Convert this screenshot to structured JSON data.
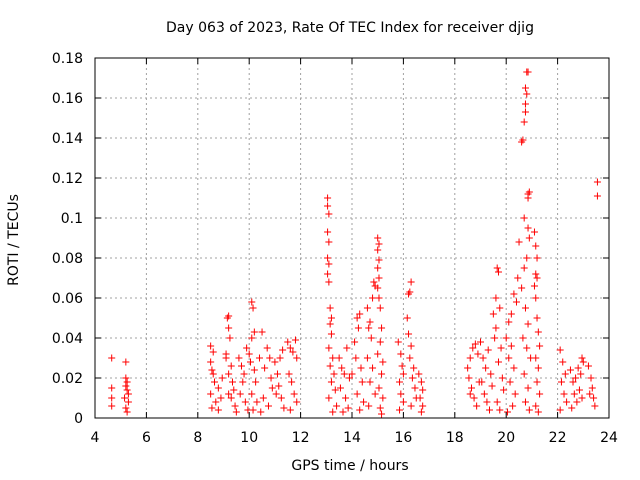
{
  "chart_data": {
    "type": "scatter",
    "title": "Day 063 of 2023, Rate Of TEC Index for receiver djig",
    "xlabel": "GPS time / hours",
    "ylabel": "ROTI / TECUs",
    "xlim": [
      4,
      24
    ],
    "ylim": [
      0,
      0.18
    ],
    "x_ticks": [
      4,
      6,
      8,
      10,
      12,
      14,
      16,
      18,
      20,
      22,
      24
    ],
    "x_tick_labels": [
      "4",
      "6",
      "8",
      "10",
      "12",
      "14",
      "16",
      "18",
      "20",
      "22",
      "24"
    ],
    "y_ticks": [
      0,
      0.02,
      0.04,
      0.06,
      0.08,
      0.1,
      0.12,
      0.14,
      0.16,
      0.18
    ],
    "y_tick_labels": [
      "0",
      "0.02",
      "0.04",
      "0.06",
      "0.08",
      "0.1",
      "0.12",
      "0.14",
      "0.16",
      "0.18"
    ],
    "grid": true,
    "marker": "plus",
    "color": "#ff0000",
    "series": [
      {
        "name": "ROTI",
        "points": [
          [
            4.65,
            0.03
          ],
          [
            4.65,
            0.015
          ],
          [
            4.65,
            0.01
          ],
          [
            4.65,
            0.006
          ],
          [
            5.2,
            0.028
          ],
          [
            5.2,
            0.02
          ],
          [
            5.25,
            0.018
          ],
          [
            5.25,
            0.014
          ],
          [
            5.3,
            0.012
          ],
          [
            5.3,
            0.008
          ],
          [
            5.2,
            0.005
          ],
          [
            5.25,
            0.003
          ],
          [
            5.15,
            0.01
          ],
          [
            5.2,
            0.016
          ],
          [
            8.5,
            0.036
          ],
          [
            8.6,
            0.033
          ],
          [
            8.5,
            0.028
          ],
          [
            8.55,
            0.024
          ],
          [
            8.6,
            0.022
          ],
          [
            8.65,
            0.018
          ],
          [
            8.5,
            0.012
          ],
          [
            8.7,
            0.008
          ],
          [
            8.55,
            0.005
          ],
          [
            8.8,
            0.015
          ],
          [
            8.9,
            0.01
          ],
          [
            8.95,
            0.02
          ],
          [
            8.8,
            0.004
          ],
          [
            9.1,
            0.032
          ],
          [
            9.15,
            0.05
          ],
          [
            9.2,
            0.051
          ],
          [
            9.2,
            0.045
          ],
          [
            9.25,
            0.04
          ],
          [
            9.1,
            0.03
          ],
          [
            9.3,
            0.026
          ],
          [
            9.2,
            0.022
          ],
          [
            9.35,
            0.018
          ],
          [
            9.4,
            0.014
          ],
          [
            9.3,
            0.01
          ],
          [
            9.45,
            0.006
          ],
          [
            9.5,
            0.003
          ],
          [
            9.2,
            0.012
          ],
          [
            9.6,
            0.03
          ],
          [
            9.7,
            0.026
          ],
          [
            9.8,
            0.022
          ],
          [
            9.9,
            0.035
          ],
          [
            9.75,
            0.018
          ],
          [
            9.65,
            0.012
          ],
          [
            9.85,
            0.008
          ],
          [
            9.95,
            0.004
          ],
          [
            10.1,
            0.058
          ],
          [
            10.15,
            0.055
          ],
          [
            10.2,
            0.043
          ],
          [
            10.1,
            0.04
          ],
          [
            10.0,
            0.032
          ],
          [
            10.05,
            0.028
          ],
          [
            10.2,
            0.024
          ],
          [
            10.25,
            0.018
          ],
          [
            10.1,
            0.012
          ],
          [
            10.3,
            0.008
          ],
          [
            10.15,
            0.004
          ],
          [
            10.4,
            0.03
          ],
          [
            10.5,
            0.043
          ],
          [
            10.6,
            0.025
          ],
          [
            10.7,
            0.035
          ],
          [
            10.8,
            0.03
          ],
          [
            10.85,
            0.02
          ],
          [
            10.9,
            0.015
          ],
          [
            10.55,
            0.01
          ],
          [
            10.75,
            0.006
          ],
          [
            10.45,
            0.003
          ],
          [
            11.0,
            0.028
          ],
          [
            11.1,
            0.022
          ],
          [
            11.2,
            0.03
          ],
          [
            11.3,
            0.034
          ],
          [
            11.15,
            0.016
          ],
          [
            11.25,
            0.01
          ],
          [
            11.35,
            0.005
          ],
          [
            11.05,
            0.012
          ],
          [
            11.5,
            0.038
          ],
          [
            11.6,
            0.035
          ],
          [
            11.7,
            0.033
          ],
          [
            11.8,
            0.039
          ],
          [
            11.85,
            0.03
          ],
          [
            11.55,
            0.022
          ],
          [
            11.65,
            0.018
          ],
          [
            11.75,
            0.012
          ],
          [
            11.85,
            0.008
          ],
          [
            11.6,
            0.004
          ],
          [
            13.05,
            0.11
          ],
          [
            13.05,
            0.106
          ],
          [
            13.1,
            0.102
          ],
          [
            13.05,
            0.093
          ],
          [
            13.1,
            0.088
          ],
          [
            13.05,
            0.08
          ],
          [
            13.1,
            0.077
          ],
          [
            13.05,
            0.072
          ],
          [
            13.1,
            0.068
          ],
          [
            13.15,
            0.055
          ],
          [
            13.2,
            0.05
          ],
          [
            13.15,
            0.047
          ],
          [
            13.2,
            0.042
          ],
          [
            13.1,
            0.035
          ],
          [
            13.25,
            0.03
          ],
          [
            13.15,
            0.026
          ],
          [
            13.3,
            0.022
          ],
          [
            13.2,
            0.018
          ],
          [
            13.35,
            0.014
          ],
          [
            13.1,
            0.01
          ],
          [
            13.4,
            0.006
          ],
          [
            13.25,
            0.003
          ],
          [
            13.5,
            0.03
          ],
          [
            13.6,
            0.025
          ],
          [
            13.7,
            0.022
          ],
          [
            13.8,
            0.035
          ],
          [
            13.9,
            0.02
          ],
          [
            13.55,
            0.015
          ],
          [
            13.75,
            0.01
          ],
          [
            13.85,
            0.005
          ],
          [
            13.65,
            0.003
          ],
          [
            14.0,
            0.022
          ],
          [
            14.1,
            0.038
          ],
          [
            14.2,
            0.05
          ],
          [
            14.25,
            0.045
          ],
          [
            14.3,
            0.052
          ],
          [
            14.15,
            0.03
          ],
          [
            14.35,
            0.025
          ],
          [
            14.4,
            0.018
          ],
          [
            14.2,
            0.012
          ],
          [
            14.45,
            0.008
          ],
          [
            14.3,
            0.004
          ],
          [
            14.6,
            0.055
          ],
          [
            14.65,
            0.045
          ],
          [
            14.7,
            0.048
          ],
          [
            14.8,
            0.06
          ],
          [
            14.85,
            0.068
          ],
          [
            14.9,
            0.066
          ],
          [
            14.75,
            0.04
          ],
          [
            14.6,
            0.03
          ],
          [
            14.8,
            0.025
          ],
          [
            14.7,
            0.018
          ],
          [
            14.9,
            0.012
          ],
          [
            14.65,
            0.006
          ],
          [
            15.0,
            0.09
          ],
          [
            15.05,
            0.087
          ],
          [
            15.0,
            0.084
          ],
          [
            15.05,
            0.079
          ],
          [
            15.0,
            0.075
          ],
          [
            15.05,
            0.07
          ],
          [
            15.0,
            0.065
          ],
          [
            15.05,
            0.06
          ],
          [
            15.1,
            0.055
          ],
          [
            15.15,
            0.045
          ],
          [
            15.1,
            0.038
          ],
          [
            15.0,
            0.032
          ],
          [
            15.2,
            0.028
          ],
          [
            15.15,
            0.022
          ],
          [
            15.05,
            0.015
          ],
          [
            15.2,
            0.01
          ],
          [
            15.1,
            0.005
          ],
          [
            15.15,
            0.002
          ],
          [
            15.8,
            0.038
          ],
          [
            15.9,
            0.032
          ],
          [
            15.95,
            0.026
          ],
          [
            16.0,
            0.022
          ],
          [
            15.85,
            0.018
          ],
          [
            15.9,
            0.012
          ],
          [
            16.0,
            0.008
          ],
          [
            15.85,
            0.004
          ],
          [
            16.15,
            0.05
          ],
          [
            16.2,
            0.062
          ],
          [
            16.25,
            0.063
          ],
          [
            16.3,
            0.068
          ],
          [
            16.2,
            0.042
          ],
          [
            16.3,
            0.036
          ],
          [
            16.25,
            0.03
          ],
          [
            16.4,
            0.025
          ],
          [
            16.35,
            0.02
          ],
          [
            16.45,
            0.015
          ],
          [
            16.5,
            0.01
          ],
          [
            16.3,
            0.006
          ],
          [
            16.6,
            0.022
          ],
          [
            16.7,
            0.018
          ],
          [
            16.75,
            0.014
          ],
          [
            16.65,
            0.01
          ],
          [
            16.75,
            0.006
          ],
          [
            16.7,
            0.003
          ],
          [
            18.5,
            0.025
          ],
          [
            18.6,
            0.03
          ],
          [
            18.7,
            0.035
          ],
          [
            18.8,
            0.037
          ],
          [
            18.9,
            0.032
          ],
          [
            18.55,
            0.02
          ],
          [
            18.65,
            0.015
          ],
          [
            18.75,
            0.01
          ],
          [
            18.85,
            0.006
          ],
          [
            18.95,
            0.018
          ],
          [
            18.6,
            0.012
          ],
          [
            19.0,
            0.038
          ],
          [
            19.1,
            0.03
          ],
          [
            19.2,
            0.025
          ],
          [
            19.3,
            0.034
          ],
          [
            19.05,
            0.018
          ],
          [
            19.15,
            0.012
          ],
          [
            19.25,
            0.008
          ],
          [
            19.35,
            0.004
          ],
          [
            19.4,
            0.022
          ],
          [
            19.45,
            0.016
          ],
          [
            19.5,
            0.052
          ],
          [
            19.6,
            0.06
          ],
          [
            19.65,
            0.075
          ],
          [
            19.7,
            0.073
          ],
          [
            19.75,
            0.055
          ],
          [
            19.6,
            0.045
          ],
          [
            19.55,
            0.04
          ],
          [
            19.8,
            0.035
          ],
          [
            19.7,
            0.028
          ],
          [
            19.85,
            0.02
          ],
          [
            19.9,
            0.014
          ],
          [
            19.65,
            0.008
          ],
          [
            19.75,
            0.004
          ],
          [
            20.0,
            0.04
          ],
          [
            20.1,
            0.048
          ],
          [
            20.2,
            0.052
          ],
          [
            20.3,
            0.062
          ],
          [
            20.4,
            0.058
          ],
          [
            20.2,
            0.036
          ],
          [
            20.1,
            0.03
          ],
          [
            20.3,
            0.025
          ],
          [
            20.15,
            0.018
          ],
          [
            20.35,
            0.012
          ],
          [
            20.25,
            0.006
          ],
          [
            20.05,
            0.003
          ],
          [
            20.45,
            0.07
          ],
          [
            20.5,
            0.088
          ],
          [
            20.6,
            0.138
          ],
          [
            20.65,
            0.139
          ],
          [
            20.7,
            0.148
          ],
          [
            20.75,
            0.153
          ],
          [
            20.8,
            0.162
          ],
          [
            20.75,
            0.165
          ],
          [
            20.8,
            0.173
          ],
          [
            20.85,
            0.173
          ],
          [
            20.75,
            0.157
          ],
          [
            20.7,
            0.1
          ],
          [
            20.85,
            0.112
          ],
          [
            20.85,
            0.11
          ],
          [
            20.9,
            0.113
          ],
          [
            20.85,
            0.095
          ],
          [
            20.9,
            0.09
          ],
          [
            20.8,
            0.08
          ],
          [
            20.7,
            0.075
          ],
          [
            20.6,
            0.065
          ],
          [
            20.75,
            0.055
          ],
          [
            20.85,
            0.047
          ],
          [
            20.65,
            0.04
          ],
          [
            20.8,
            0.035
          ],
          [
            20.95,
            0.03
          ],
          [
            20.7,
            0.022
          ],
          [
            20.85,
            0.015
          ],
          [
            20.75,
            0.008
          ],
          [
            20.9,
            0.004
          ],
          [
            21.1,
            0.093
          ],
          [
            21.15,
            0.086
          ],
          [
            21.2,
            0.08
          ],
          [
            21.15,
            0.072
          ],
          [
            21.2,
            0.07
          ],
          [
            21.1,
            0.066
          ],
          [
            21.15,
            0.06
          ],
          [
            21.2,
            0.05
          ],
          [
            21.25,
            0.043
          ],
          [
            21.3,
            0.036
          ],
          [
            21.15,
            0.03
          ],
          [
            21.25,
            0.025
          ],
          [
            21.2,
            0.018
          ],
          [
            21.3,
            0.012
          ],
          [
            21.15,
            0.006
          ],
          [
            21.25,
            0.003
          ],
          [
            22.1,
            0.034
          ],
          [
            22.2,
            0.028
          ],
          [
            22.3,
            0.022
          ],
          [
            22.15,
            0.018
          ],
          [
            22.25,
            0.012
          ],
          [
            22.35,
            0.008
          ],
          [
            22.1,
            0.004
          ],
          [
            22.5,
            0.024
          ],
          [
            22.6,
            0.018
          ],
          [
            22.7,
            0.02
          ],
          [
            22.8,
            0.025
          ],
          [
            22.9,
            0.022
          ],
          [
            22.95,
            0.03
          ],
          [
            23.0,
            0.028
          ],
          [
            22.65,
            0.012
          ],
          [
            22.75,
            0.008
          ],
          [
            22.85,
            0.014
          ],
          [
            22.55,
            0.005
          ],
          [
            22.95,
            0.01
          ],
          [
            23.2,
            0.026
          ],
          [
            23.3,
            0.02
          ],
          [
            23.35,
            0.015
          ],
          [
            23.4,
            0.01
          ],
          [
            23.45,
            0.006
          ],
          [
            23.25,
            0.012
          ],
          [
            23.55,
            0.118
          ],
          [
            23.55,
            0.111
          ]
        ]
      }
    ]
  }
}
